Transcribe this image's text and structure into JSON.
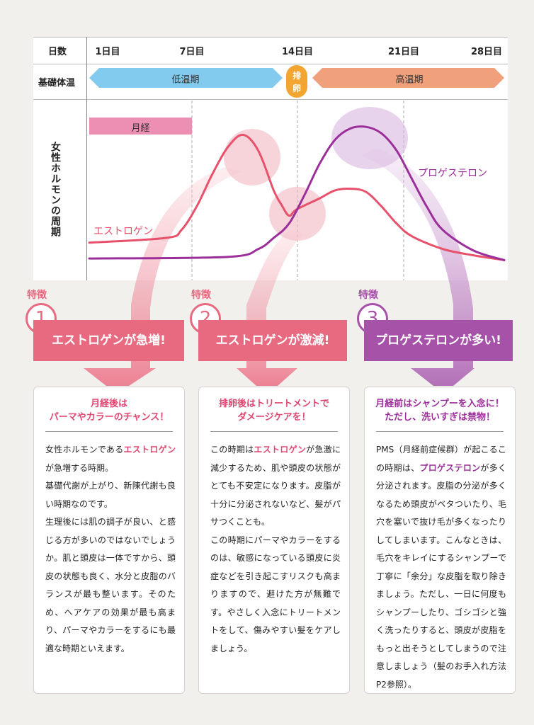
{
  "table": {
    "days_label": "日数",
    "temp_label": "基礎体温",
    "days": [
      "1日目",
      "7日目",
      "14日目",
      "21日目",
      "28日目"
    ],
    "low_temp": "低温期",
    "ovulation": [
      "排",
      "卵"
    ],
    "high_temp": "高温期",
    "hormone_label": "女性ホルモンの周期",
    "menses": "月経"
  },
  "chart_data": {
    "type": "line",
    "x_categories": [
      "1日目",
      "7日目",
      "14日目",
      "21日目",
      "28日目"
    ],
    "xlim": [
      1,
      28
    ],
    "ylim": [
      0,
      10
    ],
    "series": [
      {
        "name": "エストロゲン",
        "color": "#e8516b",
        "points": [
          [
            1,
            2.2
          ],
          [
            6,
            2.5
          ],
          [
            7,
            3
          ],
          [
            8,
            4.5
          ],
          [
            9,
            6.5
          ],
          [
            10,
            8.2
          ],
          [
            11,
            9
          ],
          [
            12,
            8
          ],
          [
            13,
            5.5
          ],
          [
            13.5,
            4.6
          ],
          [
            14,
            3.9
          ],
          [
            14.5,
            4.3
          ],
          [
            16,
            5
          ],
          [
            17,
            5.5
          ],
          [
            18,
            5.6
          ],
          [
            19,
            5.4
          ],
          [
            20,
            4.5
          ],
          [
            21,
            3.4
          ],
          [
            22,
            2.6
          ],
          [
            24,
            1.8
          ],
          [
            26,
            1.4
          ],
          [
            28,
            1.1
          ]
        ]
      },
      {
        "name": "プロゲステロン",
        "color": "#9b2f9a",
        "points": [
          [
            1,
            1.2
          ],
          [
            10,
            1.3
          ],
          [
            12,
            1.8
          ],
          [
            13,
            2.5
          ],
          [
            14,
            3.4
          ],
          [
            15,
            5.2
          ],
          [
            16,
            7.2
          ],
          [
            17,
            8.7
          ],
          [
            18,
            9.4
          ],
          [
            19,
            9.5
          ],
          [
            20,
            9.1
          ],
          [
            21,
            8
          ],
          [
            22,
            6.2
          ],
          [
            23,
            4.4
          ],
          [
            24,
            3
          ],
          [
            26,
            1.7
          ],
          [
            28,
            1.1
          ]
        ]
      }
    ]
  },
  "features": [
    {
      "tag": "特徴",
      "num": "1",
      "color": "#e86a80",
      "headline": "エストロゲンが急増!",
      "title": [
        "月経後は",
        "パーマやカラーのチャンス！"
      ],
      "body": [
        [
          "女性ホルモンである",
          "エストロゲン",
          "が急増する時期。"
        ],
        [
          "基礎代謝が上がり、新陳代謝も良い時期なのです。"
        ],
        [
          "生理後には肌の調子が良い、と感じる方が多いのではないでしょうか。肌と頭皮は一体ですから、頭皮の状態も良く、水分と皮脂のバランスが最も整います。そのため、ヘアケアの効果が最も高まり、パーマやカラーをするにも最適な時期といえます。"
        ]
      ]
    },
    {
      "tag": "特徴",
      "num": "2",
      "color": "#e86a80",
      "headline": "エストロゲンが激減!",
      "title": [
        "排卵後はトリートメントで",
        "ダメージケアを！"
      ],
      "body": [
        [
          "この時期は",
          "エストロゲン",
          "が急激に減少するため、肌や頭皮の状態がとても不安定になります。皮脂が十分に分泌されないなど、髪がパサつくことも。"
        ],
        [
          "この時期にパーマやカラーをするのは、敏感になっている頭皮に炎症などを引き起こすリスクも高まりますので、避けた方が無難です。やさしく入念にトリートメントをして、傷みやすい髪をケアしましょう。"
        ]
      ]
    },
    {
      "tag": "特徴",
      "num": "3",
      "color": "#a552a8",
      "headline": "プロゲステロンが多い!",
      "title": [
        "月経前はシャンプーを入念に！",
        "ただし、洗いすぎは禁物！"
      ],
      "body": [
        [
          "PMS（月経前症候群）が起こるこの時期は、",
          "プロゲステロン",
          "が多く分泌されます。皮脂の分泌が多くなるため頭皮がベタついたり、毛穴を塞いで抜け毛が多くなったりしてしまいます。こんなときは、毛穴をキレイにするシャンプーで丁寧に「余分」な皮脂を取り除きましょう。ただし、一日に何度もシャンプーしたり、ゴシゴシと強く洗ったりすると、頭皮が皮脂をもっと出そうとしてしまうので注意しましょう（髪のお手入れ方法P2参照）。"
        ]
      ]
    }
  ]
}
